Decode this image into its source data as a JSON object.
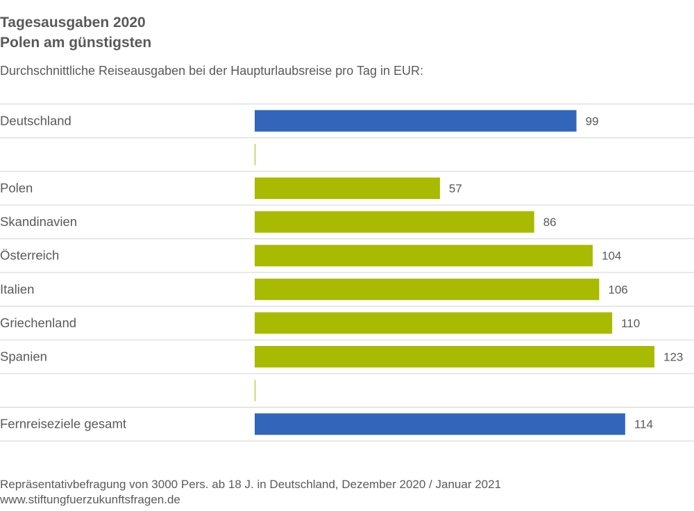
{
  "header": {
    "title_line1": "Tagesausgaben 2020",
    "title_line2": "Polen am günstigsten",
    "subtitle": "Durchschnittliche Reiseausgaben bei der Haupturlaubsreise pro Tag in EUR:"
  },
  "footer": {
    "source_note": "Repräsentativbefragung von 3000 Pers. ab 18 J. in Deutschland, Dezember 2020 / Januar 2021",
    "website": "www.stiftungfuerzukunftsfragen.de"
  },
  "colors": {
    "highlight": "#3366bb",
    "default": "#a9bb00",
    "label": "#595959",
    "gridline": "#d9d9d9"
  },
  "chart_data": {
    "type": "bar",
    "orientation": "horizontal",
    "categories": [
      "Deutschland",
      "",
      "Polen",
      "Skandinavien",
      "Österreich",
      "Italien",
      "Griechenland",
      "Spanien",
      "",
      "Fernreiseziele gesamt"
    ],
    "values": [
      99,
      null,
      57,
      86,
      104,
      106,
      110,
      123,
      null,
      114
    ],
    "value_labels": [
      "99",
      "",
      "57",
      "86",
      "104",
      "106",
      "110",
      "123",
      "",
      "114"
    ],
    "bar_colors": [
      "highlight",
      "default",
      "default",
      "default",
      "default",
      "default",
      "default",
      "default",
      "default",
      "highlight"
    ],
    "title": "Tagesausgaben 2020 Polen am günstigsten",
    "xlabel": "",
    "ylabel": "",
    "xlim": [
      0,
      123
    ],
    "grid": false,
    "legend": "none"
  }
}
